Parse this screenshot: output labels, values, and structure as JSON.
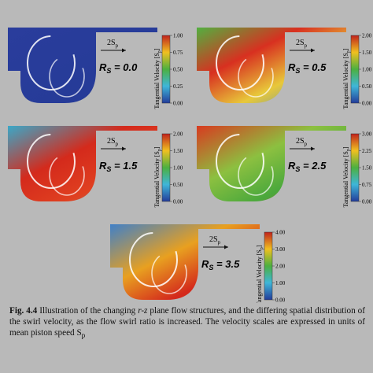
{
  "panels": [
    {
      "velocity": "2S",
      "velocity_sub": "p",
      "ratio": "R",
      "ratio_sub": "S",
      "ratio_value": " = 0.0",
      "colorbar_title": "Tangential Velocity [S",
      "colorbar_title_sub": "p",
      "colorbar_title_end": "]",
      "colorbar_ticks": [
        "1.00",
        "0.75",
        "0.50",
        "0.25",
        "0.00"
      ]
    },
    {
      "velocity": "2S",
      "velocity_sub": "p",
      "ratio": "R",
      "ratio_sub": "S",
      "ratio_value": " = 0.5",
      "colorbar_title": "Tangential Velocity [S",
      "colorbar_title_sub": "p",
      "colorbar_title_end": "]",
      "colorbar_ticks": [
        "2.00",
        "1.50",
        "1.00",
        "0.50",
        "0.00"
      ]
    },
    {
      "velocity": "2S",
      "velocity_sub": "p",
      "ratio": "R",
      "ratio_sub": "S",
      "ratio_value": " = 1.5",
      "colorbar_title": "Tangential Velocity [S",
      "colorbar_title_sub": "p",
      "colorbar_title_end": "]",
      "colorbar_ticks": [
        "2.00",
        "1.50",
        "1.00",
        "0.50",
        "0.00"
      ]
    },
    {
      "velocity": "2S",
      "velocity_sub": "p",
      "ratio": "R",
      "ratio_sub": "S",
      "ratio_value": " = 2.5",
      "colorbar_title": "Tangential Velocity [S",
      "colorbar_title_sub": "p",
      "colorbar_title_end": "]",
      "colorbar_ticks": [
        "3.00",
        "2.25",
        "1.50",
        "0.75",
        "0.00"
      ]
    },
    {
      "velocity": "2S",
      "velocity_sub": "p",
      "ratio": "R",
      "ratio_sub": "S",
      "ratio_value": " = 3.5",
      "colorbar_title": "Tangential Velocity [S",
      "colorbar_title_sub": "p",
      "colorbar_title_end": "]",
      "colorbar_ticks": [
        "4.00",
        "3.00",
        "2.00",
        "1.00",
        "0.00"
      ]
    }
  ],
  "caption": {
    "label": "Fig. 4.4",
    "text_1": " Illustration of the changing ",
    "italic": "r-z",
    "text_2": " plane flow structures, and the differing spatial distribution of the swirl velocity, as the flow swirl ratio is increased. The velocity scales are expressed in units of mean piston speed S",
    "sub": "p"
  }
}
